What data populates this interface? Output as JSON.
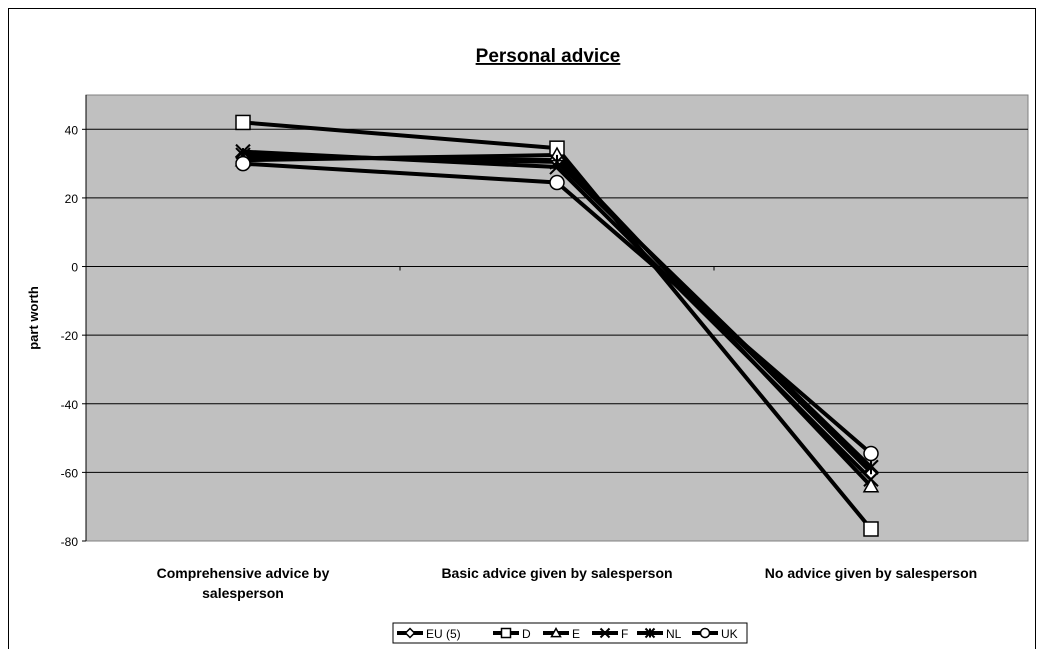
{
  "chart_data": {
    "type": "line",
    "title": "Personal advice",
    "ylabel": "part worth",
    "xlabel": "",
    "ylim": [
      -80,
      50
    ],
    "yticks": [
      40,
      20,
      0,
      -20,
      -40,
      -60,
      -80
    ],
    "grid": true,
    "legend_position": "bottom",
    "categories": [
      [
        "Comprehensive advice by",
        "salesperson"
      ],
      [
        "Basic advice given by salesperson"
      ],
      [
        "No advice given by salesperson"
      ]
    ],
    "series": [
      {
        "name": "EU (5)",
        "marker": "diamond",
        "values": [
          32,
          31,
          -60
        ]
      },
      {
        "name": "D",
        "marker": "square",
        "values": [
          42,
          34.5,
          -76.5
        ]
      },
      {
        "name": "E",
        "marker": "triangle",
        "values": [
          31,
          32.5,
          -64
        ]
      },
      {
        "name": "F",
        "marker": "x",
        "values": [
          33.5,
          29,
          -62
        ]
      },
      {
        "name": "NL",
        "marker": "star",
        "values": [
          32.5,
          30.5,
          -58.5
        ]
      },
      {
        "name": "UK",
        "marker": "circle",
        "values": [
          30,
          24.5,
          -54.5
        ]
      }
    ]
  },
  "colors": {
    "plot_background": "#c0c0c0",
    "line": "#000000",
    "marker_fill": "#ffffff"
  }
}
